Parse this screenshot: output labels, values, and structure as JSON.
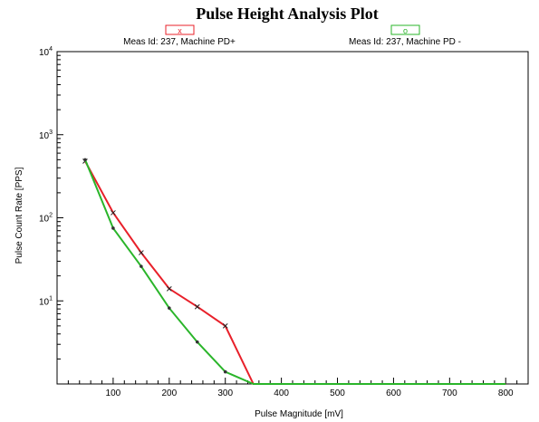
{
  "chart_data": {
    "type": "line",
    "title": "Pulse Height Analysis Plot",
    "xlabel": "Pulse Magnitude [mV]",
    "ylabel": "Pulse Count Rate [PPS]",
    "xlim": [
      0,
      840
    ],
    "ylim": [
      1,
      10000
    ],
    "y_scale": "log",
    "grid": false,
    "legend_position": "top",
    "x_ticks": [
      100,
      200,
      300,
      400,
      500,
      600,
      700,
      800
    ],
    "y_ticks": [
      {
        "base": "10",
        "exp": "1",
        "value": 10
      },
      {
        "base": "10",
        "exp": "2",
        "value": 100
      },
      {
        "base": "10",
        "exp": "3",
        "value": 1000
      },
      {
        "base": "10",
        "exp": "4",
        "value": 10000
      }
    ],
    "series": [
      {
        "name": "Meas Id: 237, Machine PD+",
        "legend_marker": "x",
        "color": "#e8202a",
        "x": [
          50,
          100,
          150,
          200,
          250,
          300,
          350,
          400,
          450,
          500,
          550,
          600,
          650,
          700,
          750,
          800
        ],
        "y": [
          480,
          115,
          38,
          14,
          8.5,
          5,
          1,
          1,
          1,
          1,
          1,
          1,
          1,
          1,
          1,
          1
        ]
      },
      {
        "name": "Meas Id: 237, Machine PD -",
        "legend_marker": "o",
        "color": "#2ab52a",
        "x": [
          50,
          100,
          150,
          200,
          250,
          300,
          350,
          400,
          450,
          500,
          550,
          600,
          650,
          700,
          750,
          800
        ],
        "y": [
          500,
          75,
          26,
          8.2,
          3.2,
          1.4,
          1,
          1,
          1,
          1,
          1,
          1,
          1,
          1,
          1,
          1
        ]
      }
    ]
  }
}
